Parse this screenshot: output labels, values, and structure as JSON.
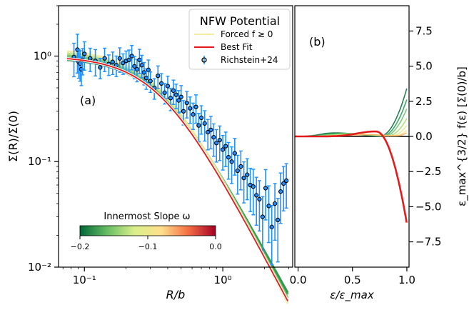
{
  "chart_data": [
    {
      "panel_label": "(a)",
      "type": "scatter",
      "xlabel": "R/b",
      "ylabel": "Σ(R)/Σ(0)",
      "xscale": "log",
      "yscale": "log",
      "xlim": [
        0.065,
        3.2
      ],
      "ylim": [
        0.01,
        3.0
      ],
      "x_ticks": [
        {
          "value": 0.1,
          "label": "10⁻¹"
        },
        {
          "value": 1.0,
          "label": "10⁰"
        }
      ],
      "y_ticks": [
        {
          "value": 0.01,
          "label": "10⁻²"
        },
        {
          "value": 0.1,
          "label": "10⁻¹"
        },
        {
          "value": 1.0,
          "label": "10⁰"
        }
      ],
      "legend": {
        "title": "NFW Potential",
        "placement": "top-right",
        "entries": [
          {
            "label": "Forced f ≥ 0",
            "color": "#f5eca0",
            "style": "line"
          },
          {
            "label": "Best Fit",
            "color": "#e41a1c",
            "style": "line"
          },
          {
            "label": "Richstein+24",
            "color": "#1e90ff",
            "style": "errorbar-marker"
          }
        ]
      },
      "colorbar": {
        "title": "Innermost Slope ω",
        "placement": "bottom-left",
        "range": [
          -0.2,
          0.0
        ],
        "ticks": [
          {
            "value": -0.2,
            "label": "−0.2"
          },
          {
            "value": -0.1,
            "label": "−0.1"
          },
          {
            "value": 0.0,
            "label": "0.0"
          }
        ],
        "colors": [
          "#006837",
          "#66bd63",
          "#d9ef8b",
          "#fee08b",
          "#f46d43",
          "#a50026"
        ]
      },
      "model_params": {
        "best_fit_omega": 0.0,
        "best_fit_scale": 0.35,
        "best_fit_alpha": 1.25,
        "forced_scales": [
          0.95,
          1.0,
          1.05,
          1.1,
          1.15
        ],
        "forced_alphas": [
          1.2,
          1.22,
          1.25,
          1.27,
          1.3
        ]
      },
      "series": [
        {
          "name": "Richstein+24",
          "x": [
            0.084,
            0.089,
            0.091,
            0.093,
            0.095,
            0.097,
            0.1,
            0.11,
            0.12,
            0.13,
            0.14,
            0.15,
            0.16,
            0.17,
            0.18,
            0.19,
            0.2,
            0.21,
            0.22,
            0.23,
            0.24,
            0.25,
            0.26,
            0.27,
            0.28,
            0.29,
            0.3,
            0.32,
            0.34,
            0.36,
            0.38,
            0.4,
            0.42,
            0.44,
            0.46,
            0.48,
            0.5,
            0.52,
            0.55,
            0.58,
            0.61,
            0.64,
            0.67,
            0.7,
            0.74,
            0.78,
            0.82,
            0.86,
            0.9,
            0.95,
            1.0,
            1.05,
            1.1,
            1.16,
            1.22,
            1.28,
            1.35,
            1.42,
            1.5,
            1.58,
            1.66,
            1.75,
            1.84,
            1.94,
            2.04,
            2.15,
            2.26,
            2.38,
            2.5,
            2.62,
            2.75,
            2.88
          ],
          "y": [
            0.98,
            1.15,
            0.88,
            0.85,
            0.75,
            0.92,
            1.05,
            0.95,
            0.9,
            0.78,
            0.95,
            0.84,
            0.88,
            0.82,
            0.95,
            0.86,
            0.9,
            0.92,
            1.0,
            0.8,
            0.75,
            0.92,
            0.82,
            0.7,
            0.62,
            0.74,
            0.58,
            0.5,
            0.65,
            0.55,
            0.45,
            0.52,
            0.4,
            0.47,
            0.43,
            0.38,
            0.41,
            0.3,
            0.36,
            0.32,
            0.28,
            0.33,
            0.22,
            0.26,
            0.23,
            0.19,
            0.2,
            0.17,
            0.15,
            0.16,
            0.13,
            0.14,
            0.11,
            0.1,
            0.12,
            0.082,
            0.09,
            0.07,
            0.075,
            0.06,
            0.058,
            0.048,
            0.044,
            0.03,
            0.056,
            0.038,
            0.024,
            0.04,
            0.028,
            0.052,
            0.062,
            0.066
          ],
          "err": [
            0.35,
            0.4,
            0.3,
            0.32,
            0.3,
            0.28,
            0.3,
            0.25,
            0.28,
            0.22,
            0.25,
            0.22,
            0.24,
            0.22,
            0.26,
            0.22,
            0.24,
            0.24,
            0.26,
            0.24,
            0.24,
            0.26,
            0.24,
            0.24,
            0.22,
            0.24,
            0.22,
            0.22,
            0.24,
            0.24,
            0.22,
            0.24,
            0.24,
            0.26,
            0.26,
            0.24,
            0.28,
            0.26,
            0.28,
            0.28,
            0.28,
            0.3,
            0.3,
            0.3,
            0.32,
            0.32,
            0.34,
            0.34,
            0.34,
            0.36,
            0.36,
            0.36,
            0.38,
            0.38,
            0.38,
            0.4,
            0.4,
            0.42,
            0.42,
            0.44,
            0.46,
            0.48,
            0.5,
            0.55,
            0.5,
            0.55,
            0.6,
            0.55,
            0.6,
            0.5,
            0.45,
            0.45
          ]
        }
      ]
    },
    {
      "panel_label": "(b)",
      "type": "line",
      "xlabel": "ε/ε_max",
      "ylabel": "ε_max^{3/2} f(ε) [Σ(0)/b]",
      "xlim": [
        -0.03,
        1.02
      ],
      "ylim": [
        -9.3,
        9.3
      ],
      "x_ticks": [
        {
          "value": 0.0,
          "label": "0.0"
        },
        {
          "value": 0.5,
          "label": "0.5"
        },
        {
          "value": 1.0,
          "label": "1.0"
        }
      ],
      "y_ticks": [
        {
          "value": 7.5,
          "label": "7.5"
        },
        {
          "value": 5.0,
          "label": "5.0"
        },
        {
          "value": 2.5,
          "label": "2.5"
        },
        {
          "value": 0.0,
          "label": "0.0"
        },
        {
          "value": -2.5,
          "label": "−2.5"
        },
        {
          "value": -5.0,
          "label": "−5.0"
        },
        {
          "value": -7.5,
          "label": "−7.5"
        }
      ],
      "curves": {
        "best_fit": {
          "color": "#e41a1c",
          "amplitude": 0.35,
          "peak": 0.7,
          "divergence": 2.0
        },
        "forced": [
          {
            "color": "#006837",
            "amplitude": 0.25,
            "peak": 0.35,
            "rise_start": 0.75,
            "rise_scale": 55
          },
          {
            "color": "#1a9850",
            "amplitude": 0.22,
            "peak": 0.4,
            "rise_start": 0.77,
            "rise_scale": 50
          },
          {
            "color": "#66bd63",
            "amplitude": 0.2,
            "peak": 0.45,
            "rise_start": 0.79,
            "rise_scale": 45
          },
          {
            "color": "#a6d96a",
            "amplitude": 0.18,
            "peak": 0.5,
            "rise_start": 0.82,
            "rise_scale": 40
          },
          {
            "color": "#d9ef8b",
            "amplitude": 0.16,
            "peak": 0.55,
            "rise_start": 0.85,
            "rise_scale": 35
          },
          {
            "color": "#fee08b",
            "amplitude": 0.14,
            "peak": 0.6,
            "rise_start": 0.88,
            "rise_scale": 30
          },
          {
            "color": "#fdae61",
            "amplitude": 0.12,
            "peak": 0.65,
            "rise_start": 0.9,
            "rise_scale": 25
          }
        ]
      }
    }
  ]
}
